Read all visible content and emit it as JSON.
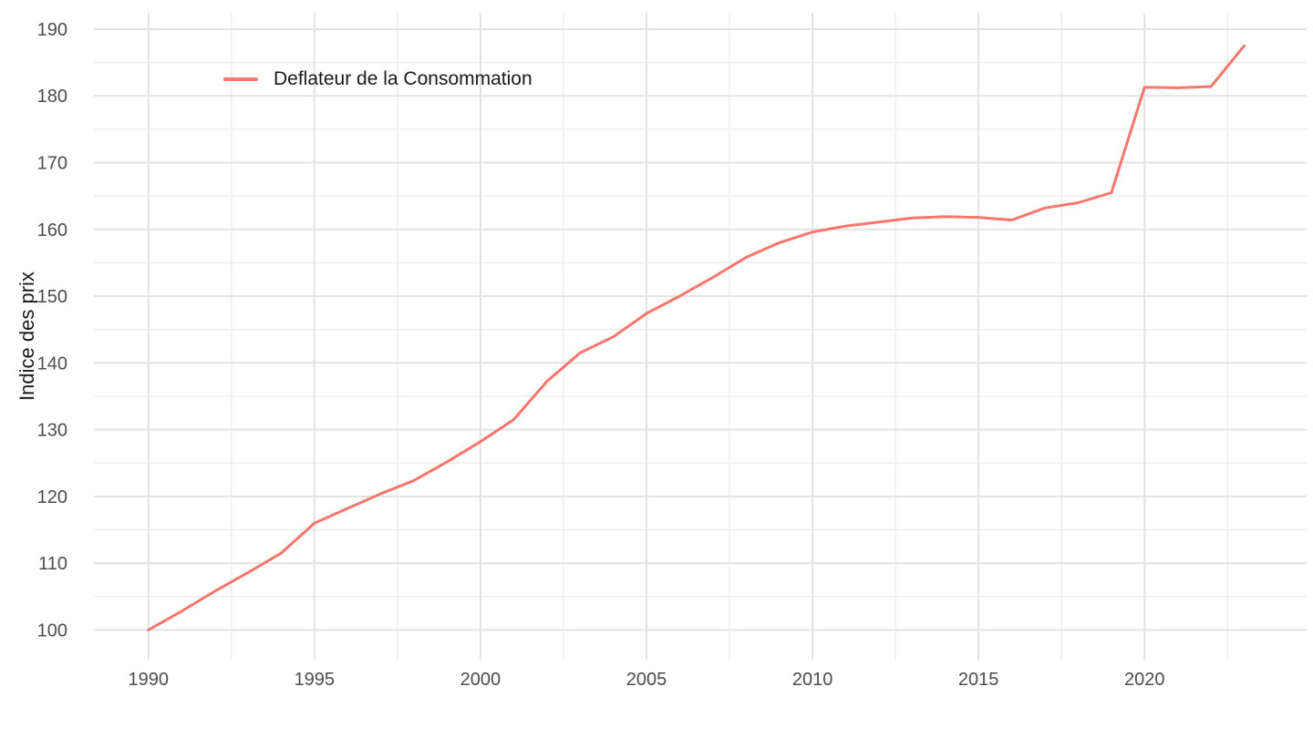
{
  "figure": {
    "background": "#FFFFFF",
    "y_axis_title": "Indice des prix",
    "x_axis_title": "",
    "legend": {
      "position": "inside-top-left",
      "entries": [
        {
          "label": "Deflateur de la Consommation",
          "color": "#F8766D",
          "swatch": "line"
        }
      ]
    }
  },
  "colors": {
    "accent": "#F8766D",
    "grid_major": "#E3E3E3",
    "grid_minor": "#EDEDED",
    "tick_text": "#4D4D4D",
    "title_text": "#1A1A1A",
    "background": "#FFFFFF"
  },
  "chart_data": {
    "type": "line",
    "title": "",
    "xlabel": "",
    "ylabel": "Indice des prix",
    "grid": "on",
    "legend_position": "inside-top-left",
    "xlim": [
      1988.36,
      2024.88
    ],
    "ylim": [
      95.55,
      192.45
    ],
    "x_ticks_major": [
      1990,
      1995,
      2000,
      2005,
      2010,
      2015,
      2020
    ],
    "x_tick_labels": [
      "1990",
      "1995",
      "2000",
      "2005",
      "2010",
      "2015",
      "2020"
    ],
    "x_ticks_minor": [
      1992.5,
      1997.5,
      2002.5,
      2007.5,
      2012.5,
      2017.5,
      2022.5
    ],
    "y_ticks_major": [
      100,
      110,
      120,
      130,
      140,
      150,
      160,
      170,
      180,
      190
    ],
    "y_tick_labels": [
      "100",
      "110",
      "120",
      "130",
      "140",
      "150",
      "160",
      "170",
      "180",
      "190"
    ],
    "y_ticks_minor": [
      105,
      115,
      125,
      135,
      145,
      155,
      165,
      175,
      185
    ],
    "series": [
      {
        "name": "Deflateur de la Consommation",
        "color": "#F8766D",
        "x": [
          1990,
          1991,
          1992,
          1993,
          1994,
          1995,
          1996,
          1997,
          1998,
          1999,
          2000,
          2001,
          2002,
          2003,
          2004,
          2005,
          2006,
          2007,
          2008,
          2009,
          2010,
          2011,
          2012,
          2013,
          2014,
          2015,
          2016,
          2017,
          2018,
          2019,
          2020,
          2021,
          2022,
          2023
        ],
        "values": [
          100.0,
          102.8,
          105.8,
          108.6,
          111.5,
          116.0,
          118.2,
          120.4,
          122.4,
          125.2,
          128.2,
          131.5,
          137.2,
          141.5,
          143.9,
          147.4,
          150.0,
          152.8,
          155.8,
          158.0,
          159.6,
          160.5,
          161.1,
          161.7,
          161.9,
          161.8,
          161.4,
          163.2,
          164.0,
          165.5,
          181.3,
          181.2,
          181.4,
          187.5
        ]
      }
    ]
  }
}
